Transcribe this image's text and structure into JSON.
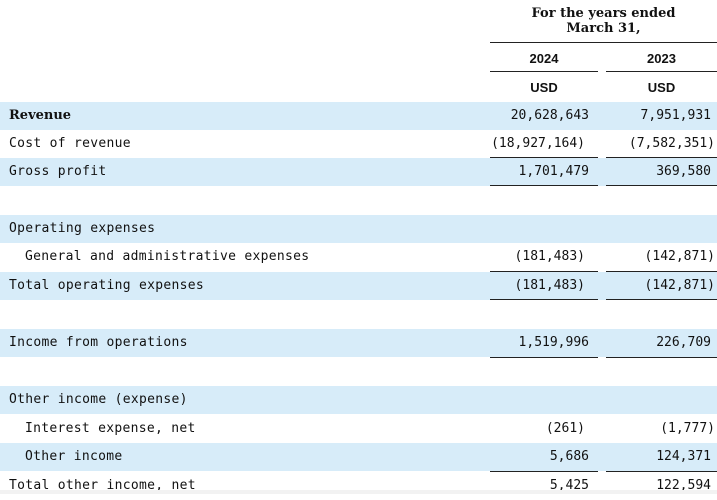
{
  "header": {
    "caption_line1": "For the  years ended",
    "caption_line2": "March  31,",
    "year1": "2024",
    "year2": "2023",
    "currency1": "USD",
    "currency2": "USD"
  },
  "rows": {
    "revenue": {
      "label": "Revenue",
      "v2024": "20,628,643",
      "v2023": "7,951,931"
    },
    "cost_of_revenue": {
      "label": "Cost of revenue",
      "v2024": "(18,927,164)",
      "v2023": "(7,582,351)"
    },
    "gross_profit": {
      "label": "Gross profit",
      "v2024": "1,701,479",
      "v2023": "369,580"
    },
    "operating_expenses": {
      "label": "Operating expenses"
    },
    "g_and_a": {
      "label": "General and administrative expenses",
      "v2024": "(181,483)",
      "v2023": "(142,871)"
    },
    "total_opex": {
      "label": "Total operating expenses",
      "v2024": "(181,483)",
      "v2023": "(142,871)"
    },
    "income_from_operations": {
      "label": "Income from operations",
      "v2024": "1,519,996",
      "v2023": "226,709"
    },
    "other_income_expense": {
      "label": "Other income (expense)"
    },
    "interest_expense": {
      "label": "Interest expense, net",
      "v2024": "(261)",
      "v2023": "(1,777)"
    },
    "other_income": {
      "label": "Other income",
      "v2024": "5,686",
      "v2023": "124,371"
    },
    "total_other_income": {
      "label": "Total other income, net",
      "v2024": "5,425",
      "v2023": "122,594"
    }
  },
  "colors": {
    "row_shade": "#d7ecf9",
    "text": "#111111"
  }
}
